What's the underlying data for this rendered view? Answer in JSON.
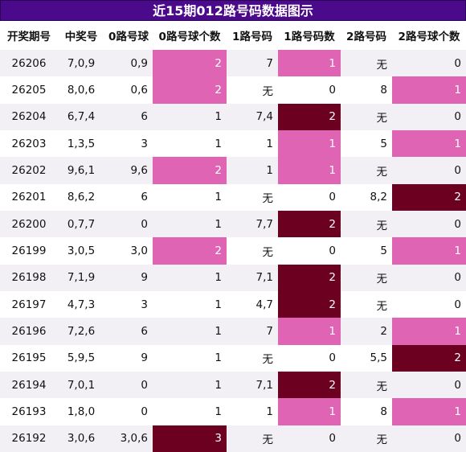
{
  "title": "近15期012路号码数据图示",
  "table": {
    "header": [
      "开奖期号",
      "中奖号",
      "0路号球",
      "0路号球个数",
      "1路号码",
      "1路号码数",
      "2路号码",
      "2路号球个数"
    ],
    "rows": [
      [
        "26206",
        "7,0,9",
        "0,9",
        "2",
        "7",
        "1",
        "无",
        "0"
      ],
      [
        "26205",
        "8,0,6",
        "0,6",
        "2",
        "无",
        "0",
        "8",
        "1"
      ],
      [
        "26204",
        "6,7,4",
        "6",
        "1",
        "7,4",
        "2",
        "无",
        "0"
      ],
      [
        "26203",
        "1,3,5",
        "3",
        "1",
        "1",
        "1",
        "5",
        "1"
      ],
      [
        "26202",
        "9,6,1",
        "9,6",
        "2",
        "1",
        "1",
        "无",
        "0"
      ],
      [
        "26201",
        "8,6,2",
        "6",
        "1",
        "无",
        "0",
        "8,2",
        "2"
      ],
      [
        "26200",
        "0,7,7",
        "0",
        "1",
        "7,7",
        "2",
        "无",
        "0"
      ],
      [
        "26199",
        "3,0,5",
        "3,0",
        "2",
        "无",
        "0",
        "5",
        "1"
      ],
      [
        "26198",
        "7,1,9",
        "9",
        "1",
        "7,1",
        "2",
        "无",
        "0"
      ],
      [
        "26197",
        "4,7,3",
        "3",
        "1",
        "4,7",
        "2",
        "无",
        "0"
      ],
      [
        "26196",
        "7,2,6",
        "6",
        "1",
        "7",
        "1",
        "2",
        "1"
      ],
      [
        "26195",
        "5,9,5",
        "9",
        "1",
        "无",
        "0",
        "5,5",
        "2"
      ],
      [
        "26194",
        "7,0,1",
        "0",
        "1",
        "7,1",
        "2",
        "无",
        "0"
      ],
      [
        "26193",
        "1,8,0",
        "0",
        "1",
        "1",
        "1",
        "8",
        "1"
      ],
      [
        "26192",
        "3,0,6",
        "3,0,6",
        "3",
        "无",
        "0",
        "无",
        "0"
      ]
    ],
    "highlights": {
      "3": {
        "2": "#df64b4",
        "3": "#6b0020"
      },
      "5": {
        "1": "#df64b4",
        "2": "#6b0020"
      },
      "7": {
        "1": "#df64b4",
        "2": "#6b0020"
      }
    }
  }
}
